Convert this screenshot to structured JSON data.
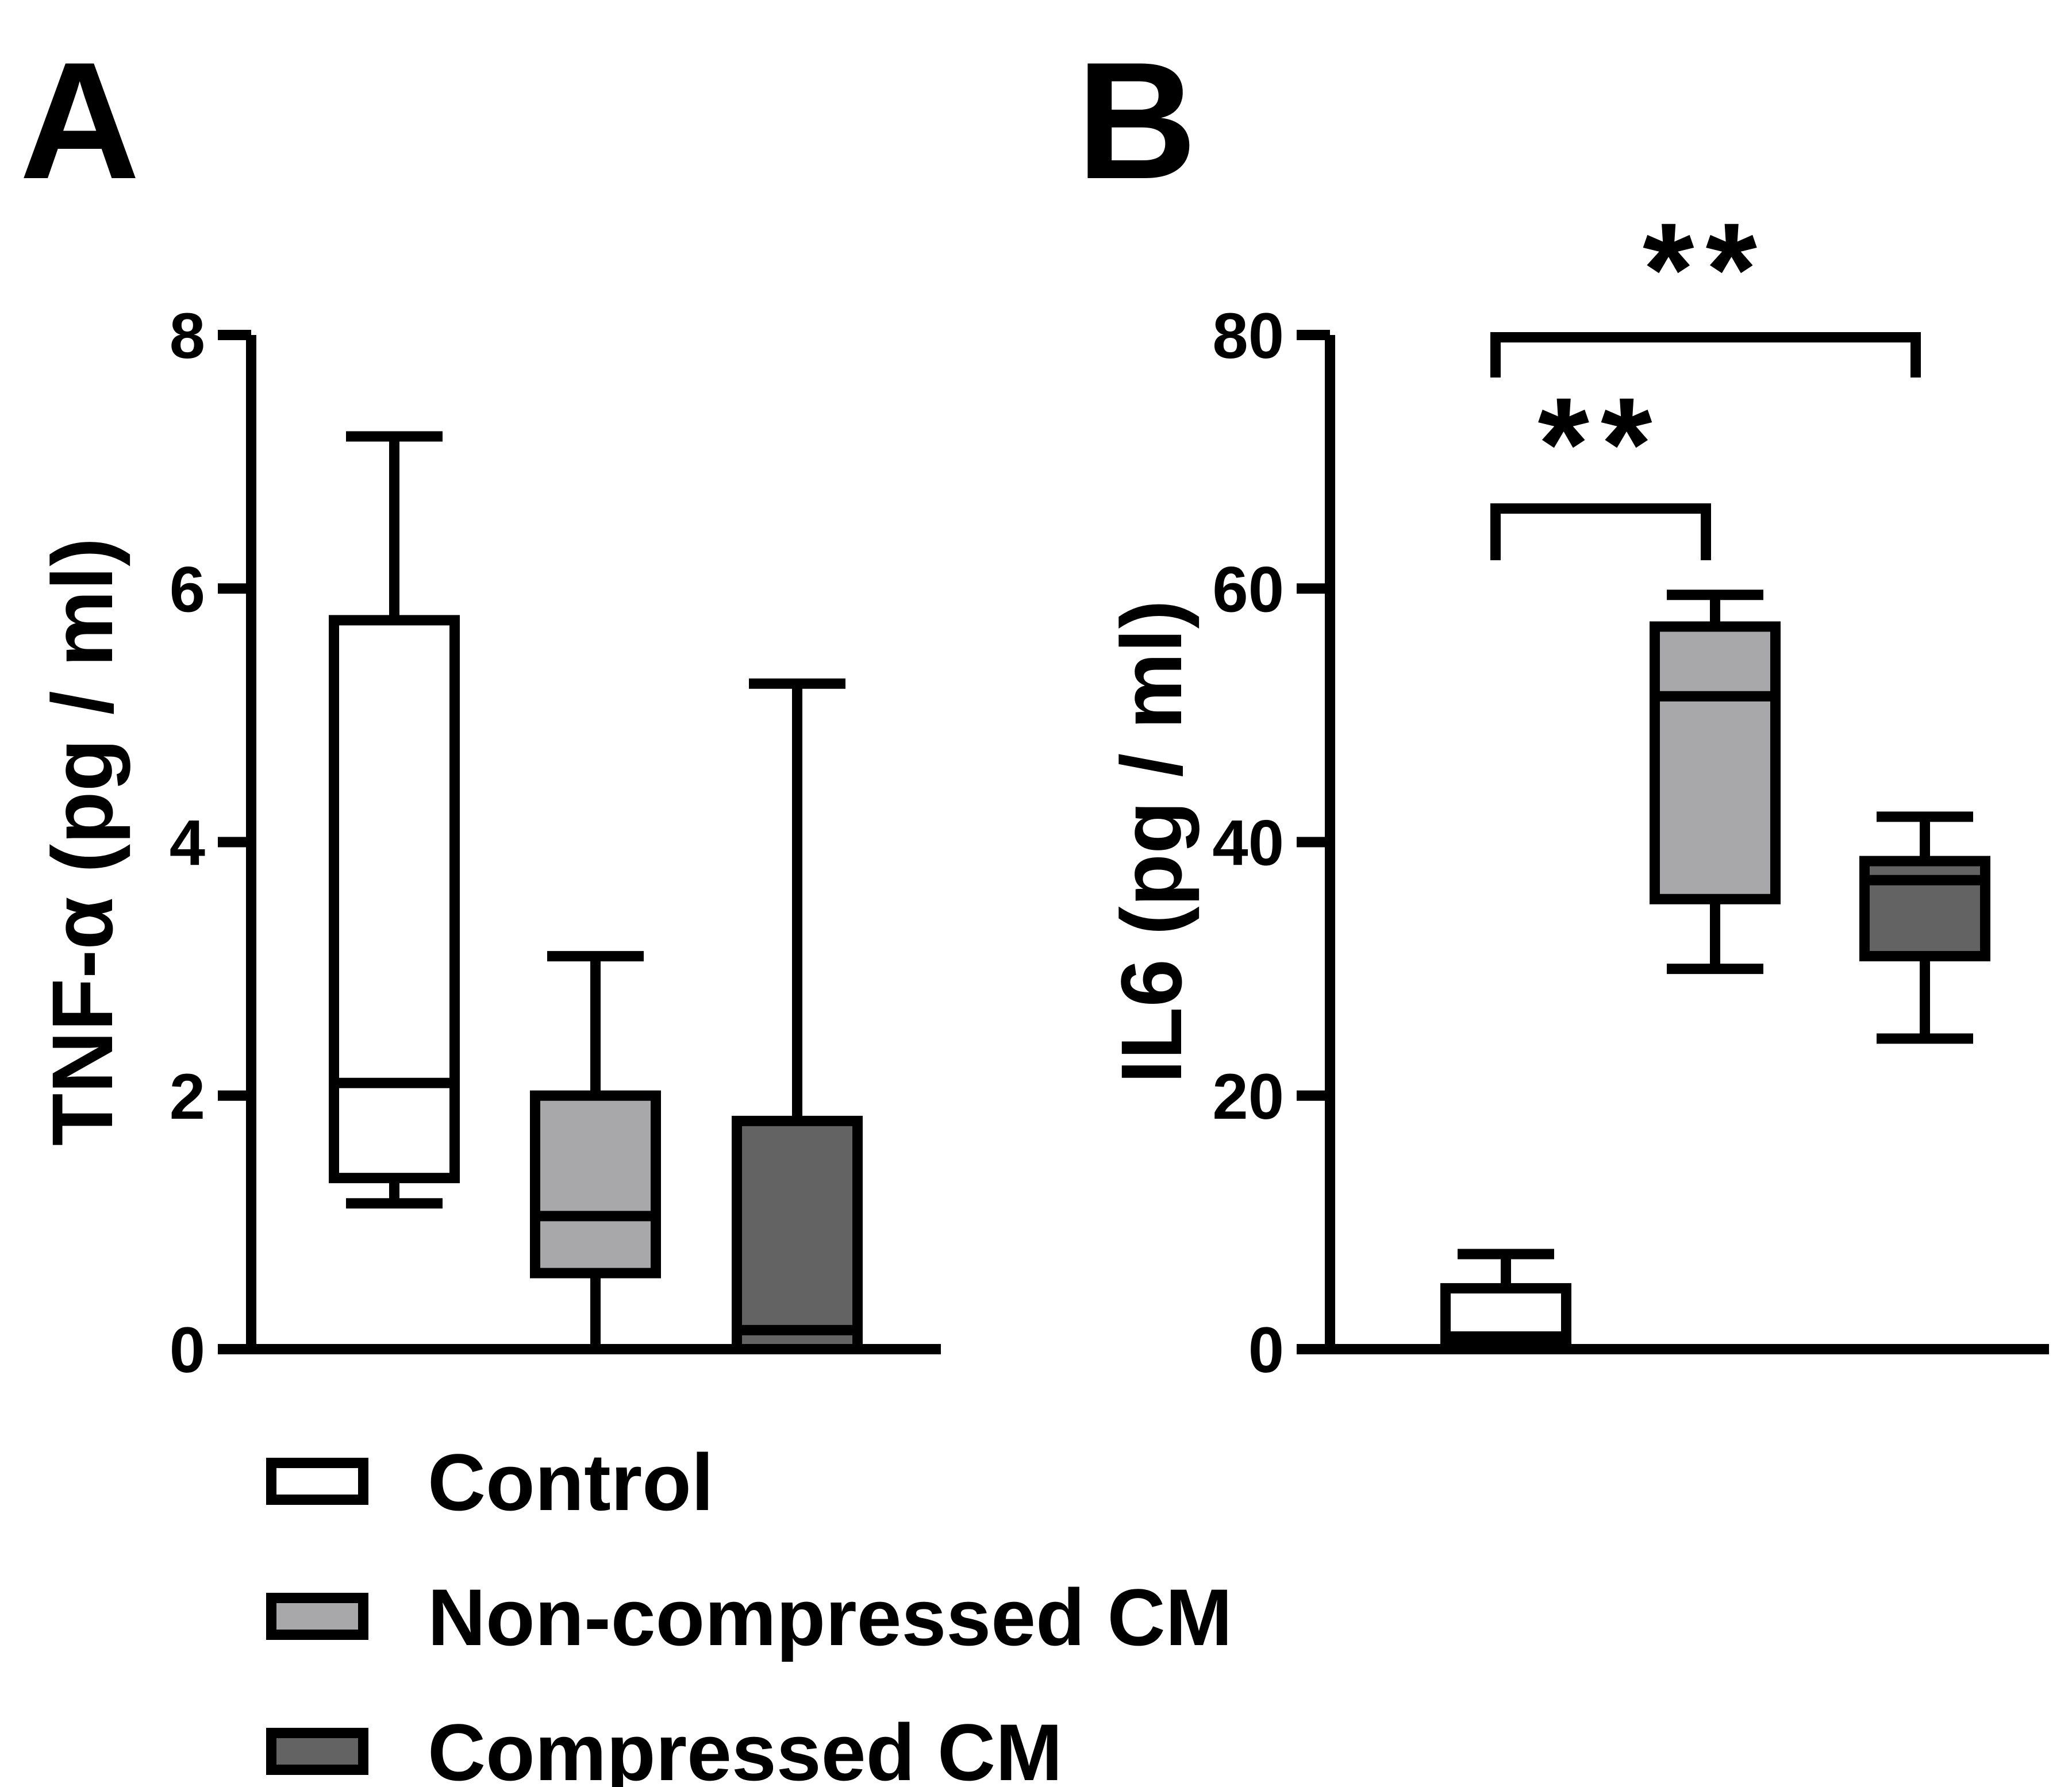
{
  "legend": {
    "items": [
      {
        "label": "Control",
        "color": "#ffffff"
      },
      {
        "label": "Non-compressed CM",
        "color": "#a8a8ab"
      },
      {
        "label": "Compressed CM",
        "color": "#636363"
      }
    ]
  },
  "chart_data": [
    {
      "panel_label": "A",
      "type": "box",
      "ylabel": "TNF-α (pg / ml)",
      "ylim": [
        0,
        8
      ],
      "yticks": [
        "0",
        "2",
        "4",
        "6",
        "8"
      ],
      "categories": [
        "Control",
        "Non-compressed CM",
        "Compressed CM"
      ],
      "boxes": [
        {
          "name": "Control",
          "min": 1.15,
          "q1": 1.35,
          "median": 2.1,
          "q3": 5.75,
          "max": 7.2
        },
        {
          "name": "Non-compressed CM",
          "min": 0.0,
          "q1": 0.6,
          "median": 1.05,
          "q3": 2.0,
          "max": 3.1
        },
        {
          "name": "Compressed CM",
          "min": 0.0,
          "q1": 0.0,
          "median": 0.15,
          "q3": 1.8,
          "max": 5.25
        }
      ],
      "annotations": []
    },
    {
      "panel_label": "B",
      "type": "box",
      "ylabel": "IL6 (pg / ml)",
      "ylim": [
        0,
        80
      ],
      "yticks": [
        "0",
        "20",
        "40",
        "60",
        "80"
      ],
      "categories": [
        "Control",
        "Non-compressed CM",
        "Compressed CM"
      ],
      "boxes": [
        {
          "name": "Control",
          "min": 0.5,
          "q1": 0.5,
          "median": 1.0,
          "q3": 4.8,
          "max": 7.5
        },
        {
          "name": "Non-compressed CM",
          "min": 30.0,
          "q1": 35.5,
          "median": 51.5,
          "q3": 57.0,
          "max": 59.5
        },
        {
          "name": "Compressed CM",
          "min": 24.5,
          "q1": 31.0,
          "median": 37.0,
          "q3": 38.5,
          "max": 42.0
        }
      ],
      "annotations": [
        {
          "text": "**",
          "from": "Control",
          "to": "Non-compressed CM"
        },
        {
          "text": "**",
          "from": "Control",
          "to": "Compressed CM"
        }
      ]
    }
  ]
}
